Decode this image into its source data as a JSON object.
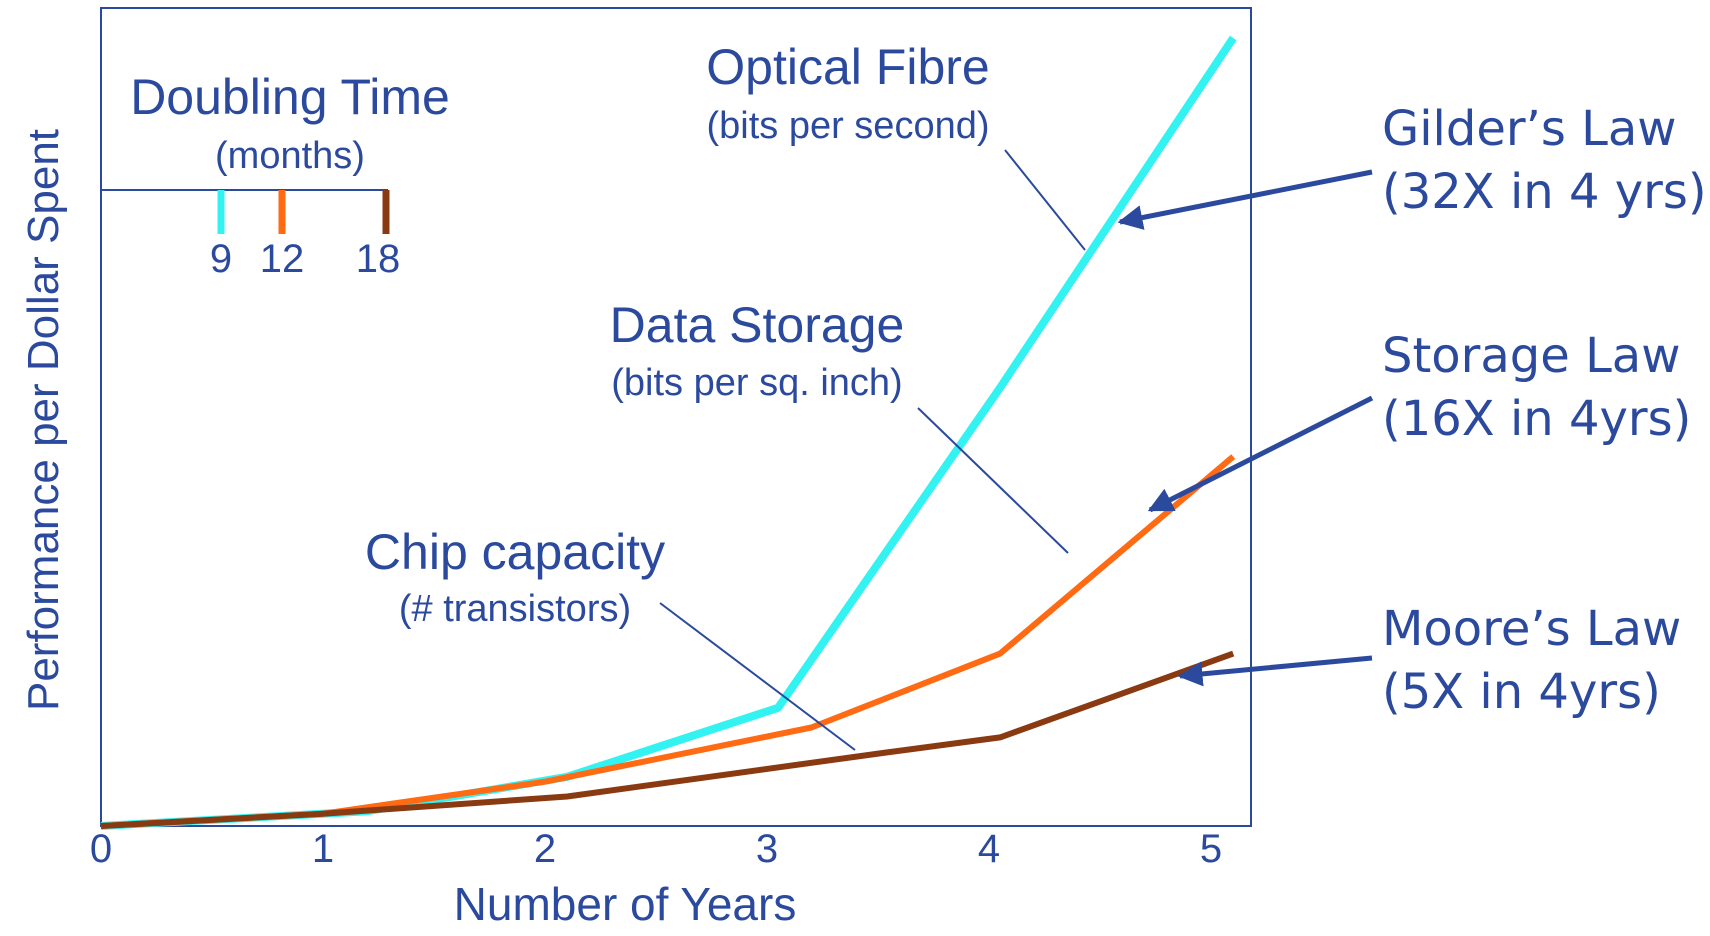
{
  "chart_data": {
    "type": "line",
    "xlabel": "Number of Years",
    "ylabel": "Performance per Dollar Spent",
    "xlim": [
      0,
      5.1
    ],
    "ylim": [
      0,
      16
    ],
    "x_ticks": [
      "0",
      "1",
      "2",
      "3",
      "4",
      "5"
    ],
    "grid": false,
    "legend": {
      "title": "Doubling Time",
      "subtitle": "(months)",
      "placement": "top-left",
      "items": [
        {
          "label": "9",
          "color": "#33f2f2"
        },
        {
          "label": "12",
          "color": "#ff6a13"
        },
        {
          "label": "18",
          "color": "#8a3a10"
        }
      ]
    },
    "series": [
      {
        "color": "#33f2f2",
        "label": "Optical Fibre",
        "sublabel": "(bits per second)",
        "law": "Gilder’s Law",
        "law_detail": "(32X in 4 yrs)",
        "x": [
          0,
          1.2,
          2.1,
          3.05,
          4.05,
          5.1
        ],
        "y": [
          0,
          0.3,
          1.0,
          2.4,
          8.9,
          16.0
        ]
      },
      {
        "color": "#ff6a13",
        "label": "Data Storage",
        "sublabel": "(bits per sq. inch)",
        "law": "Storage Law",
        "law_detail": "(16X in 4yrs)",
        "x": [
          0,
          1.0,
          2.0,
          3.2,
          4.05,
          5.1
        ],
        "y": [
          0,
          0.25,
          0.9,
          2.0,
          3.5,
          7.5
        ]
      },
      {
        "color": "#8a3a10",
        "label": "Chip capacity",
        "sublabel": "(# transistors)",
        "law": "Moore’s Law",
        "law_detail": "(5X in 4yrs)",
        "x": [
          0,
          1.0,
          2.1,
          3.55,
          4.05,
          5.1
        ],
        "y": [
          0,
          0.25,
          0.6,
          1.5,
          1.8,
          3.5
        ]
      }
    ]
  }
}
